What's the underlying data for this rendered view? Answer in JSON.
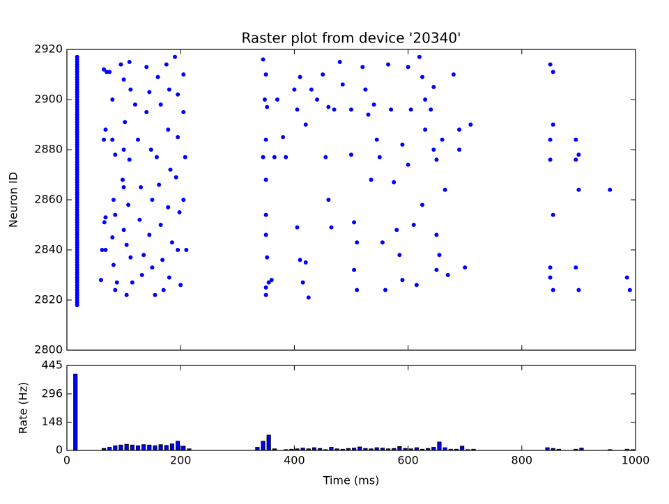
{
  "chart_data": [
    {
      "type": "scatter",
      "title": "Raster plot from device '20340'",
      "y_label": "Neuron ID",
      "color": "#0000ff",
      "xlim": [
        0,
        1000
      ],
      "xticks": [
        0,
        200,
        400,
        600,
        800,
        1000
      ],
      "ylim": [
        2800,
        2920
      ],
      "yticks": [
        2800,
        2820,
        2840,
        2860,
        2880,
        2900,
        2920
      ],
      "x": [
        18,
        18,
        18,
        18,
        18,
        18,
        18,
        18,
        18,
        18,
        18,
        18,
        18,
        18,
        18,
        18,
        18,
        18,
        18,
        18,
        18,
        18,
        18,
        18,
        18,
        18,
        18,
        18,
        18,
        18,
        18,
        18,
        18,
        18,
        18,
        18,
        18,
        18,
        18,
        18,
        18,
        18,
        18,
        18,
        18,
        18,
        18,
        18,
        18,
        18,
        18,
        18,
        18,
        18,
        18,
        18,
        18,
        18,
        18,
        18,
        18,
        18,
        18,
        18,
        18,
        18,
        18,
        18,
        18,
        18,
        18,
        18,
        18,
        18,
        18,
        18,
        18,
        18,
        18,
        18,
        18,
        18,
        18,
        18,
        18,
        18,
        18,
        18,
        18,
        18,
        18,
        18,
        18,
        18,
        18,
        18,
        18,
        18,
        18,
        18,
        65,
        70,
        68,
        65,
        68,
        66,
        62,
        68,
        60,
        75,
        80,
        80,
        85,
        82,
        85,
        80,
        82,
        85,
        88,
        95,
        100,
        102,
        100,
        98,
        100,
        105,
        100,
        105,
        110,
        112,
        110,
        108,
        112,
        115,
        120,
        125,
        130,
        128,
        135,
        132,
        140,
        145,
        140,
        148,
        150,
        145,
        150,
        155,
        160,
        165,
        158,
        162,
        165,
        168,
        170,
        175,
        180,
        178,
        182,
        178,
        185,
        180,
        190,
        195,
        195,
        192,
        198,
        195,
        200,
        205,
        205,
        208,
        205,
        210,
        345,
        350,
        348,
        352,
        350,
        345,
        350,
        350,
        350,
        352,
        350,
        355,
        350,
        360,
        365,
        370,
        380,
        385,
        400,
        405,
        410,
        405,
        410,
        420,
        415,
        425,
        420,
        430,
        440,
        450,
        460,
        455,
        460,
        465,
        470,
        480,
        485,
        500,
        500,
        505,
        510,
        505,
        510,
        520,
        525,
        530,
        535,
        540,
        545,
        550,
        555,
        560,
        565,
        570,
        575,
        580,
        585,
        590,
        590,
        600,
        605,
        600,
        610,
        615,
        620,
        625,
        630,
        630,
        625,
        640,
        645,
        645,
        650,
        650,
        655,
        650,
        660,
        665,
        670,
        680,
        690,
        690,
        700,
        710,
        850,
        855,
        855,
        850,
        850,
        855,
        850,
        850,
        855,
        895,
        900,
        895,
        900,
        895,
        900,
        955,
        985,
        990
      ],
      "values": [
        2818,
        2819,
        2820,
        2821,
        2822,
        2823,
        2824,
        2825,
        2826,
        2827,
        2828,
        2829,
        2830,
        2831,
        2832,
        2833,
        2834,
        2835,
        2836,
        2837,
        2838,
        2839,
        2840,
        2841,
        2842,
        2843,
        2844,
        2845,
        2846,
        2847,
        2848,
        2849,
        2850,
        2851,
        2852,
        2853,
        2854,
        2855,
        2856,
        2857,
        2858,
        2859,
        2860,
        2861,
        2862,
        2863,
        2864,
        2865,
        2866,
        2867,
        2868,
        2869,
        2870,
        2871,
        2872,
        2873,
        2874,
        2875,
        2876,
        2877,
        2878,
        2879,
        2880,
        2881,
        2882,
        2883,
        2884,
        2885,
        2886,
        2887,
        2888,
        2889,
        2890,
        2891,
        2892,
        2893,
        2894,
        2895,
        2896,
        2897,
        2898,
        2899,
        2900,
        2901,
        2902,
        2903,
        2904,
        2905,
        2906,
        2907,
        2908,
        2909,
        2910,
        2911,
        2912,
        2913,
        2914,
        2915,
        2916,
        2917,
        2912,
        2911,
        2888,
        2884,
        2853,
        2851,
        2840,
        2840,
        2828,
        2911,
        2900,
        2884,
        2878,
        2860,
        2854,
        2845,
        2834,
        2824,
        2827,
        2914,
        2908,
        2891,
        2880,
        2868,
        2865,
        2842,
        2848,
        2822,
        2915,
        2904,
        2876,
        2858,
        2837,
        2827,
        2898,
        2884,
        2865,
        2852,
        2838,
        2830,
        2913,
        2903,
        2895,
        2880,
        2860,
        2846,
        2833,
        2822,
        2909,
        2898,
        2877,
        2866,
        2850,
        2836,
        2824,
        2914,
        2904,
        2888,
        2872,
        2857,
        2843,
        2829,
        2917,
        2902,
        2885,
        2869,
        2855,
        2840,
        2826,
        2910,
        2895,
        2877,
        2860,
        2840,
        2916,
        2910,
        2900,
        2897,
        2884,
        2877,
        2868,
        2854,
        2846,
        2837,
        2825,
        2827,
        2822,
        2828,
        2877,
        2900,
        2885,
        2877,
        2904,
        2896,
        2909,
        2849,
        2836,
        2835,
        2827,
        2821,
        2890,
        2904,
        2900,
        2910,
        2897,
        2877,
        2860,
        2849,
        2896,
        2915,
        2906,
        2896,
        2878,
        2851,
        2843,
        2832,
        2824,
        2913,
        2904,
        2894,
        2868,
        2898,
        2884,
        2877,
        2843,
        2824,
        2914,
        2896,
        2867,
        2848,
        2838,
        2828,
        2882,
        2913,
        2896,
        2874,
        2850,
        2826,
        2917,
        2909,
        2900,
        2888,
        2858,
        2896,
        2905,
        2880,
        2876,
        2846,
        2838,
        2832,
        2884,
        2864,
        2830,
        2910,
        2888,
        2880,
        2833,
        2890,
        2914,
        2911,
        2890,
        2884,
        2876,
        2854,
        2833,
        2829,
        2824,
        2884,
        2878,
        2876,
        2864,
        2833,
        2824,
        2864,
        2829,
        2824
      ]
    },
    {
      "type": "histogram",
      "x_label": "Time (ms)",
      "y_label": "Rate (Hz)",
      "color": "#0000ff",
      "xlim": [
        0,
        1000
      ],
      "xticks": [
        0,
        200,
        400,
        600,
        800,
        1000
      ],
      "ylim": [
        0,
        445
      ],
      "yticks": [
        0,
        148,
        296,
        445
      ],
      "bins": [
        0,
        10,
        20,
        30,
        40,
        50,
        60,
        70,
        80,
        90,
        100,
        110,
        120,
        130,
        140,
        150,
        160,
        170,
        180,
        190,
        200,
        210,
        220,
        230,
        240,
        250,
        260,
        270,
        280,
        290,
        300,
        310,
        320,
        330,
        340,
        350,
        360,
        370,
        380,
        390,
        400,
        410,
        420,
        430,
        440,
        450,
        460,
        470,
        480,
        490,
        500,
        510,
        520,
        530,
        540,
        550,
        560,
        570,
        580,
        590,
        600,
        610,
        620,
        630,
        640,
        650,
        660,
        670,
        680,
        690,
        700,
        710,
        720,
        730,
        740,
        750,
        760,
        770,
        780,
        790,
        800,
        810,
        820,
        830,
        840,
        850,
        860,
        870,
        880,
        890,
        900,
        910,
        920,
        930,
        940,
        950,
        960,
        970,
        980,
        990,
        1000
      ],
      "values": [
        0,
        400,
        0,
        0,
        0,
        0,
        10,
        16,
        24,
        28,
        32,
        28,
        24,
        30,
        28,
        24,
        30,
        26,
        34,
        48,
        22,
        8,
        0,
        0,
        0,
        0,
        0,
        0,
        0,
        0,
        0,
        0,
        0,
        16,
        48,
        80,
        8,
        0,
        4,
        6,
        8,
        12,
        8,
        14,
        10,
        4,
        16,
        8,
        6,
        10,
        12,
        18,
        10,
        8,
        14,
        12,
        8,
        10,
        20,
        10,
        8,
        14,
        6,
        10,
        16,
        44,
        14,
        6,
        6,
        22,
        4,
        6,
        0,
        0,
        0,
        0,
        0,
        0,
        0,
        0,
        0,
        0,
        0,
        0,
        14,
        10,
        6,
        0,
        0,
        6,
        12,
        0,
        0,
        0,
        0,
        4,
        0,
        0,
        6,
        4
      ]
    }
  ]
}
